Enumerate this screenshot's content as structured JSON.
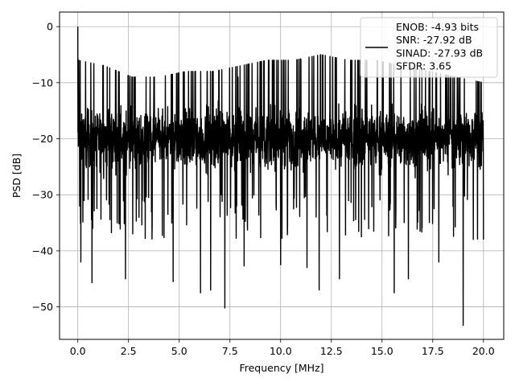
{
  "chart_data": {
    "type": "line",
    "title": "",
    "xlabel": "Frequency [MHz]",
    "ylabel": "PSD [dB]",
    "xlim": [
      -0.9,
      21.0
    ],
    "ylim": [
      -55.8,
      2.6
    ],
    "x_ticks": [
      0.0,
      2.5,
      5.0,
      7.5,
      10.0,
      12.5,
      15.0,
      17.5,
      20.0
    ],
    "x_tick_labels": [
      "0.0",
      "2.5",
      "5.0",
      "7.5",
      "10.0",
      "12.5",
      "15.0",
      "17.5",
      "20.0"
    ],
    "y_ticks": [
      0,
      -10,
      -20,
      -30,
      -40,
      -50
    ],
    "y_tick_labels": [
      "0",
      "−10",
      "−20",
      "−30",
      "−40",
      "−50"
    ],
    "grid": true,
    "legend_position": "top-right",
    "line_color": "#000000",
    "series": [
      {
        "name": "ENOB: -4.93 bits\nSNR: -27.92 dB\nSINAD: -27.93 dB\nSFDR: 3.65",
        "x_range": [
          0.0,
          20.0
        ],
        "y_envelope_high": [
          -6,
          -7,
          -9,
          -9,
          -8,
          -8,
          -7,
          -6,
          -6,
          -5,
          -6,
          -6,
          -7,
          -8,
          -9,
          -10
        ],
        "y_envelope_low": [
          -38,
          -42,
          -45,
          -44,
          -46,
          -47,
          -50,
          -42,
          -40,
          -43,
          -47,
          -42,
          -44,
          -46,
          -53,
          -39
        ],
        "notable_points": [
          {
            "x": 0.0,
            "y": 0.0
          },
          {
            "x": 0.05,
            "y": -6
          },
          {
            "x": 0.15,
            "y": -42
          },
          {
            "x": 0.7,
            "y": -45.7
          },
          {
            "x": 2.35,
            "y": -45
          },
          {
            "x": 4.7,
            "y": -45.5
          },
          {
            "x": 6.05,
            "y": -47.5
          },
          {
            "x": 6.55,
            "y": -47
          },
          {
            "x": 7.25,
            "y": -50.2
          },
          {
            "x": 7.9,
            "y": -9
          },
          {
            "x": 8.2,
            "y": -42.7
          },
          {
            "x": 10.0,
            "y": -42.5
          },
          {
            "x": 11.0,
            "y": -6
          },
          {
            "x": 11.3,
            "y": -43
          },
          {
            "x": 11.9,
            "y": -47
          },
          {
            "x": 12.9,
            "y": -45
          },
          {
            "x": 15.6,
            "y": -47.5
          },
          {
            "x": 16.3,
            "y": -45
          },
          {
            "x": 17.8,
            "y": -42
          },
          {
            "x": 19.0,
            "y": -53.3
          },
          {
            "x": 20.0,
            "y": -38
          }
        ]
      }
    ]
  }
}
